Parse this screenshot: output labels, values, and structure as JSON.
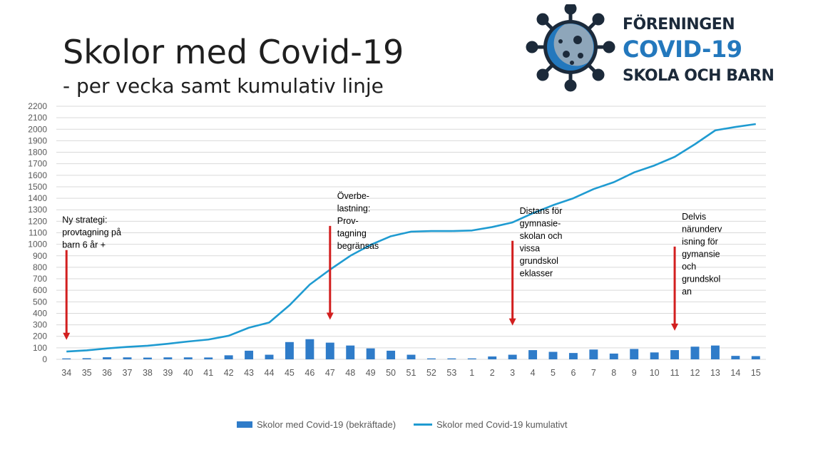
{
  "title": "Skolor med Covid-19",
  "subtitle": "- per vecka samt kumulativ linje",
  "logo": {
    "line1": "FÖRENINGEN",
    "line2": "COVID-19",
    "line3": "SKOLA OCH BARN",
    "icon": "virus-icon"
  },
  "colors": {
    "bar": "#2f7cc9",
    "line": "#1f9bd1",
    "arrow": "#d21f1f",
    "grid": "#d9d9d9",
    "logo_dark": "#1c2a3a",
    "logo_blue": "#2378bd"
  },
  "chart_data": {
    "type": "bar",
    "title": "Skolor med Covid-19",
    "subtitle": "- per vecka samt kumulativ linje",
    "categories": [
      "34",
      "35",
      "36",
      "37",
      "38",
      "39",
      "40",
      "41",
      "42",
      "43",
      "44",
      "45",
      "46",
      "47",
      "48",
      "49",
      "50",
      "51",
      "52",
      "53",
      "1",
      "2",
      "3",
      "4",
      "5",
      "6",
      "7",
      "8",
      "9",
      "10",
      "11",
      "12",
      "13",
      "14",
      "15"
    ],
    "ylim": [
      0,
      2200
    ],
    "yticks": [
      0,
      100,
      200,
      300,
      400,
      500,
      600,
      700,
      800,
      900,
      1000,
      1100,
      1200,
      1300,
      1400,
      1500,
      1600,
      1700,
      1800,
      1900,
      2000,
      2100,
      2200
    ],
    "grid": true,
    "legend_position": "bottom",
    "series": [
      {
        "name": "Skolor med Covid-19 (bekräftade)",
        "kind": "bar",
        "values": [
          8,
          10,
          18,
          17,
          15,
          17,
          17,
          16,
          35,
          75,
          40,
          150,
          175,
          145,
          120,
          95,
          75,
          40,
          8,
          8,
          8,
          25,
          40,
          80,
          65,
          55,
          85,
          50,
          90,
          60,
          80,
          110,
          120,
          30,
          28
        ]
      },
      {
        "name": "Skolor med Covid-19 kumulativt",
        "kind": "line",
        "values": [
          68,
          78,
          95,
          108,
          118,
          135,
          155,
          172,
          205,
          275,
          320,
          470,
          650,
          780,
          900,
          995,
          1070,
          1110,
          1115,
          1115,
          1120,
          1150,
          1190,
          1270,
          1340,
          1400,
          1480,
          1540,
          1625,
          1685,
          1760,
          1870,
          1990,
          2020,
          2045
        ]
      }
    ],
    "annotations": [
      {
        "category": "34",
        "text_lines": [
          "Ny strategi:",
          "provtagning på",
          "barn 6 år +"
        ],
        "arrow_top": 950,
        "arrow_bottom": 175
      },
      {
        "category": "47",
        "text_lines": [
          "Överbe-",
          "lastning:",
          "Prov-",
          "tagning",
          "begränsas"
        ],
        "arrow_top": 1160,
        "arrow_bottom": 350
      },
      {
        "category": "3",
        "text_lines": [
          "Distans för",
          "gymnasie-",
          "skolan och",
          "vissa",
          "grundskol",
          "eklasser"
        ],
        "arrow_top": 1030,
        "arrow_bottom": 300
      },
      {
        "category": "11",
        "text_lines": [
          "Delvis",
          "närunderv",
          "isning för",
          "gymansie",
          "och",
          "grundskol",
          "an"
        ],
        "arrow_top": 980,
        "arrow_bottom": 255
      }
    ]
  }
}
